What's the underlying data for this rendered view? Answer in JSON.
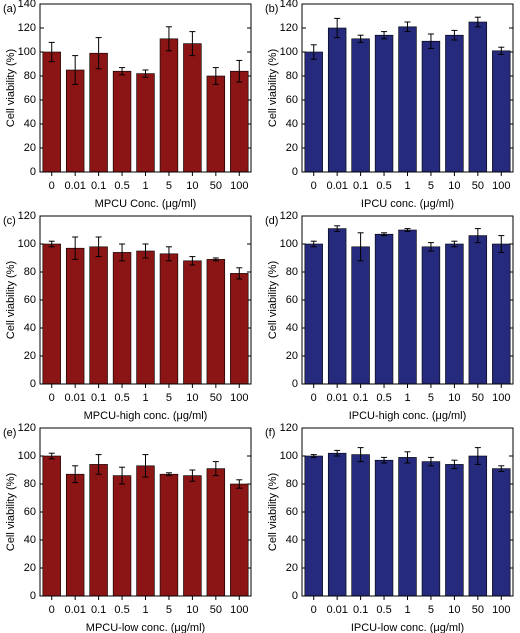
{
  "chart_data": [
    {
      "type": "bar",
      "panel_label": "(a)",
      "xlabel": "MPCU Conc. (μg/ml)",
      "ylabel": "Cell viability (%)",
      "color": "#8b1515",
      "categories": [
        "0",
        "0.01",
        "0.1",
        "0.5",
        "1",
        "5",
        "10",
        "50",
        "100"
      ],
      "values": [
        100,
        85,
        99,
        84,
        82,
        111,
        107,
        80,
        84
      ],
      "errors": [
        8,
        12,
        13,
        3,
        3,
        10,
        10,
        7,
        9
      ],
      "ylim": [
        0,
        140
      ],
      "yticks": [
        0,
        20,
        40,
        60,
        80,
        100,
        120,
        140
      ]
    },
    {
      "type": "bar",
      "panel_label": "(b)",
      "xlabel": "IPCU conc. (μg/ml)",
      "ylabel": "Cell viability (%)",
      "color": "#262a7c",
      "categories": [
        "0",
        "0.01",
        "0.1",
        "0.5",
        "1",
        "5",
        "10",
        "50",
        "100"
      ],
      "values": [
        100,
        120,
        111,
        114,
        121,
        109,
        114,
        125,
        101
      ],
      "errors": [
        6,
        8,
        3,
        3,
        4,
        6,
        4,
        4,
        3
      ],
      "ylim": [
        0,
        140
      ],
      "yticks": [
        0,
        20,
        40,
        60,
        80,
        100,
        120,
        140
      ]
    },
    {
      "type": "bar",
      "panel_label": "(c)",
      "xlabel": "MPCU-high conc. (μg/ml)",
      "ylabel": "Cell viability (%)",
      "color": "#8b1515",
      "categories": [
        "0",
        "0.01",
        "0.1",
        "0.5",
        "1",
        "5",
        "10",
        "50",
        "100"
      ],
      "values": [
        100,
        97,
        98,
        94,
        95,
        93,
        88,
        89,
        79
      ],
      "errors": [
        2,
        8,
        7,
        6,
        5,
        5,
        3,
        1,
        4
      ],
      "ylim": [
        0,
        120
      ],
      "yticks": [
        0,
        20,
        40,
        60,
        80,
        100,
        120
      ]
    },
    {
      "type": "bar",
      "panel_label": "(d)",
      "xlabel": "IPCU-high conc. (μg/ml)",
      "ylabel": "Cell viability (%)",
      "color": "#262a7c",
      "categories": [
        "0",
        "0.01",
        "0.1",
        "0.5",
        "1",
        "5",
        "10",
        "50",
        "100"
      ],
      "values": [
        100,
        111,
        98,
        107,
        110,
        98,
        100,
        106,
        100
      ],
      "errors": [
        2,
        2,
        10,
        1,
        1,
        3,
        2,
        5,
        6
      ],
      "ylim": [
        0,
        120
      ],
      "yticks": [
        0,
        20,
        40,
        60,
        80,
        100,
        120
      ]
    },
    {
      "type": "bar",
      "panel_label": "(e)",
      "xlabel": "MPCU-low conc. (μg/ml)",
      "ylabel": "Cell viability (%)",
      "color": "#8b1515",
      "categories": [
        "0",
        "0.01",
        "0.1",
        "0.5",
        "1",
        "5",
        "10",
        "50",
        "100"
      ],
      "values": [
        100,
        87,
        94,
        86,
        93,
        87,
        86,
        91,
        80
      ],
      "errors": [
        2,
        6,
        7,
        6,
        8,
        1,
        4,
        5,
        3
      ],
      "ylim": [
        0,
        120
      ],
      "yticks": [
        0,
        20,
        40,
        60,
        80,
        100,
        120
      ]
    },
    {
      "type": "bar",
      "panel_label": "(f)",
      "xlabel": "IPCU-low conc. (μg/ml)",
      "ylabel": "Cell viability (%)",
      "color": "#262a7c",
      "categories": [
        "0",
        "0.01",
        "0.1",
        "0.5",
        "1",
        "5",
        "10",
        "50",
        "100"
      ],
      "values": [
        100,
        102,
        101,
        97,
        99,
        96,
        94,
        100,
        91
      ],
      "errors": [
        1,
        2,
        5,
        2,
        4,
        3,
        3,
        6,
        2
      ],
      "ylim": [
        0,
        120
      ],
      "yticks": [
        0,
        20,
        40,
        60,
        80,
        100,
        120
      ]
    }
  ]
}
